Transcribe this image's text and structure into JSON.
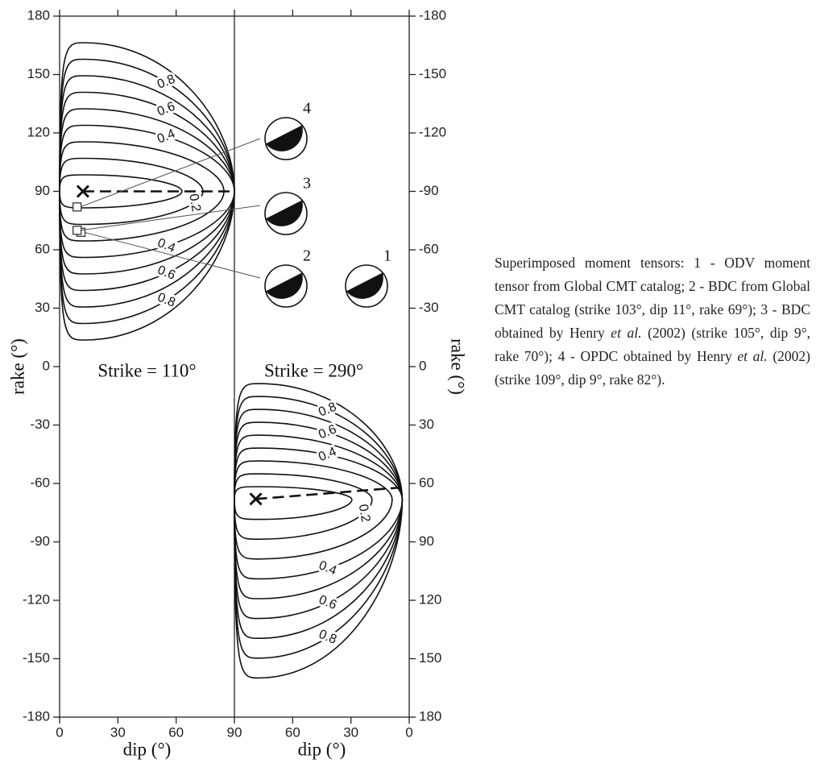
{
  "chart_data": {
    "type": "contour",
    "ylabel": "rake (°)",
    "y2label": "rake (°)",
    "ylim": [
      -180,
      180
    ],
    "yticks": [
      -180,
      -150,
      -120,
      -90,
      -60,
      -30,
      0,
      30,
      60,
      90,
      120,
      150,
      180
    ],
    "y2lim": [
      180,
      -180
    ],
    "y2ticks": [
      -180,
      -150,
      -120,
      -90,
      -60,
      -30,
      0,
      30,
      60,
      90,
      120,
      150,
      180
    ],
    "panels": [
      {
        "title": "Strike = 110°",
        "xlabel": "dip (°)",
        "xlim": [
          0,
          90
        ],
        "xticks": [
          0,
          30,
          60,
          90
        ],
        "levels": [
          0.1,
          0.2,
          0.3,
          0.4,
          0.5,
          0.6,
          0.7,
          0.8,
          0.9
        ],
        "labels": [
          0.2,
          0.4,
          0.6,
          0.8
        ],
        "best": {
          "dip": 12,
          "rake": 90
        }
      },
      {
        "title": "Strike = 290°",
        "xlabel": "dip (°)",
        "xlim": [
          90,
          0
        ],
        "xticks": [
          60,
          30,
          0
        ],
        "levels": [
          0.1,
          0.2,
          0.3,
          0.4,
          0.5,
          0.6,
          0.7,
          0.8,
          0.9
        ],
        "labels": [
          0.2,
          0.4,
          0.6,
          0.8
        ],
        "best": {
          "dip": 79,
          "rake": 68
        }
      }
    ],
    "tensors": [
      {
        "label": "1"
      },
      {
        "label": "2",
        "dip": 11,
        "rake": 69
      },
      {
        "label": "3",
        "dip": 9,
        "rake": 70
      },
      {
        "label": "4",
        "dip": 9,
        "rake": 82
      }
    ],
    "caption": [
      "Superimposed moment tensors: 1 - ODV moment tensor from Global CMT catalog; 2 - BDC from Global CMT catalog (strike 103°, dip 11°, rake 69°); 3 - BDC obtained by Henry ",
      "et al.",
      " (2002) (strike 105°, dip 9°, rake 70°); 4 - OPDC obtained by Henry ",
      "et al.",
      " (2002) (strike 109°, dip 9°, rake 82°)."
    ]
  }
}
